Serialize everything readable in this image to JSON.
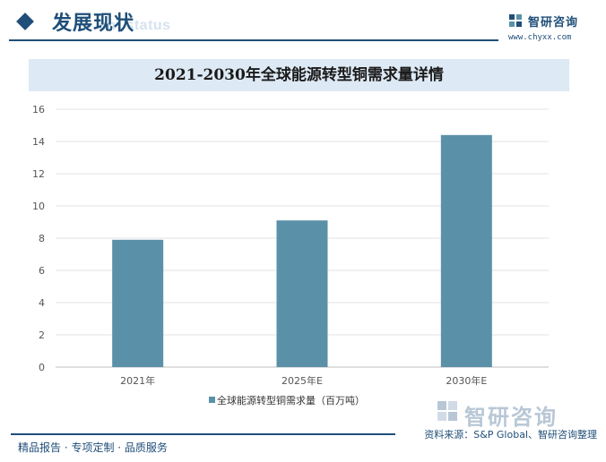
{
  "header": {
    "section_title": "发展现状",
    "section_subtitle": "ent status",
    "logo_name": "智研咨询",
    "logo_url": "www.chyxx.com",
    "logo_icon": "chyxx-logo-icon"
  },
  "chart_title": "2021-2030年全球能源转型铜需求量详情",
  "chart_data": {
    "type": "bar",
    "title": "2021-2030年全球能源转型铜需求量详情",
    "categories": [
      "2021年",
      "2025年E",
      "2030年E"
    ],
    "series": [
      {
        "name": "全球能源转型铜需求量（百万吨）",
        "values": [
          7.9,
          9.1,
          14.4
        ]
      }
    ],
    "ylim": [
      0,
      16
    ],
    "yticks": [
      0,
      2,
      4,
      6,
      8,
      10,
      12,
      14,
      16
    ],
    "grid": true,
    "legend_position": "bottom",
    "colors": {
      "bar": "#5b91a8"
    }
  },
  "footer": {
    "slogan": "精品报告 · 专项定制 · 品质服务",
    "source": "资料来源：S&P Global、智研咨询整理",
    "watermark_logo": "智研咨询"
  }
}
